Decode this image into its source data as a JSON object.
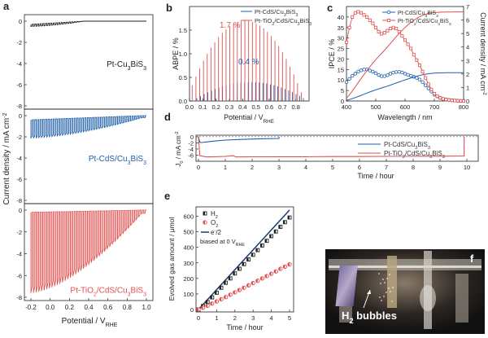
{
  "chart_data": [
    {
      "id": "a",
      "type": "line",
      "panel_label": "a",
      "xlabel": "Potential / V",
      "xlabel_sub": "RHE",
      "ylabel": "Current density / mA cm",
      "ylabel_sup": "-2",
      "xlim": [
        -0.2,
        1.0
      ],
      "xticks": [
        "-0.2",
        "0.0",
        "0.2",
        "0.4",
        "0.6",
        "0.8",
        "1.0"
      ],
      "subpanels": [
        {
          "name": "Pt-Cu3BiS3",
          "label_main": "Pt-Cu",
          "label_sub1": "3",
          "label_mid": "BiS",
          "label_sub2": "3",
          "color": "#222222",
          "ylim": [
            -8,
            0
          ],
          "yticks": [
            "0",
            "-2",
            "-4",
            "-6",
            "-8"
          ],
          "dark_start": -0.3,
          "photo_start": -0.5,
          "photo_end": 0.0,
          "onset": 0.35
        },
        {
          "name": "Pt-CdS/Cu3BiS3",
          "label_main": "Pt-CdS/Cu",
          "label_sub1": "3",
          "label_mid": "BiS",
          "label_sub2": "3",
          "color": "#1f5fa8",
          "ylim": [
            -8,
            0
          ],
          "yticks": [
            "0",
            "-2",
            "-4",
            "-6",
            "-8"
          ],
          "dark_start": -0.4,
          "photo_start": -2.1,
          "photo_end": -0.2,
          "onset": 0.95
        },
        {
          "name": "Pt-TiO2/CdS/Cu3BiS3",
          "label_main": "Pt-TiO",
          "label_sub1": "2",
          "label_mid": "/CdS/Cu",
          "label_sub2": "3",
          "label_end": "BiS",
          "label_sub3": "3",
          "color": "#e05050",
          "ylim": [
            -8,
            0
          ],
          "yticks": [
            "0",
            "-2",
            "-4",
            "-6",
            "-8"
          ],
          "dark_start": -0.2,
          "photo_start": -7.6,
          "photo_end": -0.3,
          "onset": 0.95
        }
      ]
    },
    {
      "id": "b",
      "type": "bar",
      "panel_label": "b",
      "xlabel": "Potential / V",
      "xlabel_sub": "RHE",
      "ylabel": "ABPE / %",
      "xlim": [
        0.0,
        0.9
      ],
      "ylim": [
        0,
        2.0
      ],
      "xticks": [
        "0.0",
        "0.1",
        "0.2",
        "0.3",
        "0.4",
        "0.5",
        "0.6",
        "0.7",
        "0.8"
      ],
      "yticks": [
        "0.0",
        "0.5",
        "1.0",
        "1.5"
      ],
      "series": [
        {
          "name": "Pt-CdS/Cu3BiS3",
          "color": "#1f5fa8",
          "peak": 0.4,
          "peak_at": 0.45,
          "start": 0.02,
          "end": 0.85
        },
        {
          "name": "Pt-TiO2/CdS/Cu3BiS3",
          "color": "#e05050",
          "peak": 1.7,
          "peak_at": 0.42,
          "start": 0.02,
          "end": 0.87
        }
      ],
      "legend": [
        {
          "main": "Pt-CdS/Cu",
          "s1": "3",
          "mid": "BiS",
          "s2": "3"
        },
        {
          "main": "Pt-TiO",
          "s1": "2",
          "mid": "/CdS/Cu",
          "s2": "3",
          "end": "BiS",
          "s3": "3"
        }
      ],
      "annotations": [
        "1.7 %",
        "0.4 %"
      ]
    },
    {
      "id": "c",
      "type": "line",
      "panel_label": "c",
      "xlabel": "Wavelength / nm",
      "ylabel": "IPCE / %",
      "ylabel_right": "Current density / mA cm",
      "ylabel_right_sup": "-2",
      "xlim": [
        400,
        800
      ],
      "ylim": [
        0,
        45
      ],
      "ylim_right": [
        0,
        7
      ],
      "xticks": [
        "400",
        "500",
        "600",
        "700",
        "800"
      ],
      "yticks": [
        "0",
        "5",
        "10",
        "15",
        "20",
        "25",
        "30",
        "35",
        "40"
      ],
      "yticks_right": [
        "0",
        "1",
        "2",
        "3",
        "4",
        "5",
        "6",
        "7"
      ],
      "series": [
        {
          "name": "Pt-CdS/Cu3BiS3 IPCE",
          "color": "#1f5fa8",
          "x": [
            400,
            410,
            420,
            430,
            440,
            450,
            460,
            470,
            480,
            490,
            500,
            510,
            520,
            530,
            540,
            550,
            560,
            570,
            580,
            590,
            600,
            610,
            620,
            630,
            640,
            650,
            660,
            670,
            680,
            690,
            700,
            710,
            720,
            730,
            740,
            750,
            760,
            770,
            780,
            790,
            800
          ],
          "y": [
            9,
            10.5,
            12,
            13,
            14,
            14.6,
            15,
            15,
            14.5,
            14,
            13.2,
            12.4,
            11.8,
            11.8,
            12.3,
            13,
            13.5,
            13.8,
            13.9,
            13.6,
            13,
            12.5,
            12,
            11.5,
            11,
            10.2,
            9,
            7.5,
            6,
            4.5,
            3,
            2.2,
            1.5,
            1,
            0.7,
            0.5,
            0.3,
            0.2,
            0.1,
            0.05,
            0
          ]
        },
        {
          "name": "Pt-TiO2/CdS/Cu3BiS3 IPCE",
          "color": "#e05050",
          "x": [
            400,
            410,
            420,
            430,
            440,
            450,
            460,
            470,
            480,
            490,
            500,
            510,
            520,
            530,
            540,
            550,
            560,
            570,
            580,
            590,
            600,
            610,
            620,
            630,
            640,
            650,
            660,
            670,
            680,
            690,
            700,
            710,
            720,
            730,
            740,
            750,
            760,
            770,
            780,
            790,
            800
          ],
          "y": [
            28,
            35,
            40,
            42,
            42.5,
            42,
            41,
            40,
            38.5,
            37,
            35,
            33,
            32,
            32.5,
            33.5,
            34.5,
            35,
            34.5,
            33,
            31,
            29,
            27,
            25,
            22,
            19.5,
            17,
            14,
            11,
            8,
            5.5,
            3.5,
            2.3,
            1.5,
            1,
            0.7,
            0.5,
            0.3,
            0.2,
            0.1,
            0.05,
            0
          ]
        },
        {
          "name": "Pt-CdS/Cu3BiS3 integrated Jsc",
          "color": "#1f5fa8",
          "axis": "right",
          "final": 2.1
        },
        {
          "name": "Pt-TiO2/CdS/Cu3BiS3 integrated Jsc",
          "color": "#e05050",
          "axis": "right",
          "final": 6.6
        }
      ],
      "legend": [
        {
          "main": "Pt-CdS/Cu",
          "s1": "3",
          "mid": "BiS",
          "s2": "3"
        },
        {
          "main": "Pt-TiO",
          "s1": "2",
          "mid": "/CdS/Cu",
          "s2": "3",
          "end": "BiS",
          "s3": "3"
        }
      ]
    },
    {
      "id": "d",
      "type": "line",
      "panel_label": "d",
      "xlabel": "Time / hour",
      "ylabel": "J",
      "ylabel_sub": "0",
      "ylabel_rest": " / mA cm",
      "ylabel_sup": "-2",
      "xlim": [
        0,
        10
      ],
      "ylim": [
        -8,
        0.5
      ],
      "xticks": [
        "0",
        "1",
        "2",
        "3",
        "4",
        "5",
        "6",
        "7",
        "8",
        "9",
        "10"
      ],
      "yticks": [
        "0",
        "-2",
        "-4",
        "-6"
      ],
      "series": [
        {
          "name": "Pt-CdS/Cu3BiS3",
          "color": "#1f5fa8",
          "x": [
            0.05,
            0.1,
            0.3,
            0.6,
            1.0,
            1.5,
            2.0,
            2.5,
            3.0
          ],
          "y": [
            -1.8,
            -1.9,
            -1.7,
            -1.4,
            -1.1,
            -0.9,
            -0.75,
            -0.65,
            -0.55
          ]
        },
        {
          "name": "Pt-TiO2/CdS/Cu3BiS3",
          "color": "#e05050",
          "x": [
            0.05,
            0.3,
            0.6,
            1.0,
            1.3,
            1.4,
            2.0,
            3.0,
            4.0,
            5.0,
            6.0,
            7.0,
            8.0,
            9.0,
            9.9
          ],
          "y": [
            -6.2,
            -6.6,
            -6.5,
            -6.4,
            -6.2,
            -6.6,
            -6.55,
            -6.5,
            -6.5,
            -6.45,
            -6.45,
            -6.4,
            -6.4,
            -6.35,
            -6.3
          ]
        }
      ],
      "legend": [
        {
          "main": "Pt-CdS/Cu",
          "s1": "3",
          "mid": "BiS",
          "s2": "3"
        },
        {
          "main": "Pt-TiO",
          "s1": "2",
          "mid": "/CdS/Cu",
          "s2": "3",
          "end": "BiS",
          "s3": "3"
        }
      ]
    },
    {
      "id": "e",
      "type": "scatter",
      "panel_label": "e",
      "xlabel": "Time / hour",
      "ylabel": "Evolved gas amount / μmol",
      "xlim": [
        0,
        5
      ],
      "ylim": [
        0,
        650
      ],
      "xticks": [
        "0",
        "1",
        "2",
        "3",
        "4",
        "5"
      ],
      "yticks": [
        "0",
        "100",
        "200",
        "300",
        "400",
        "500",
        "600"
      ],
      "series": [
        {
          "name": "H2",
          "label_main": "H",
          "label_sub": "2",
          "color": "#222222",
          "marker": "square",
          "x": [
            0,
            0.25,
            0.5,
            0.75,
            1,
            1.25,
            1.5,
            1.75,
            2,
            2.25,
            2.5,
            2.75,
            3,
            3.25,
            3.5,
            3.75,
            4,
            4.25,
            4.5,
            4.75,
            5
          ],
          "y": [
            0,
            22,
            48,
            78,
            108,
            140,
            172,
            200,
            232,
            262,
            292,
            322,
            352,
            382,
            412,
            442,
            472,
            502,
            532,
            562,
            592
          ]
        },
        {
          "name": "O2",
          "label_main": "O",
          "label_sub": "2",
          "color": "#e05050",
          "marker": "circle",
          "x": [
            0,
            0.25,
            0.5,
            0.75,
            1,
            1.25,
            1.5,
            1.75,
            2,
            2.25,
            2.5,
            2.75,
            3,
            3.25,
            3.5,
            3.75,
            4,
            4.25,
            4.5,
            4.75,
            5
          ],
          "y": [
            0,
            11,
            24,
            38,
            52,
            66,
            80,
            95,
            110,
            125,
            140,
            155,
            170,
            185,
            200,
            215,
            230,
            245,
            262,
            276,
            290
          ]
        },
        {
          "name": "e-/2",
          "label_main": "e",
          "label_sup": "-",
          "label_rest": "/2",
          "color": "#1a3a6e",
          "marker": "line",
          "x": [
            0,
            5
          ],
          "y": [
            0,
            640
          ]
        }
      ],
      "annotation_main": "biased at 0 V",
      "annotation_sub": "RHE"
    }
  ],
  "photo": {
    "panel_label": "f",
    "caption_main": "H",
    "caption_sub": "2",
    "caption_rest": " bubbles"
  }
}
